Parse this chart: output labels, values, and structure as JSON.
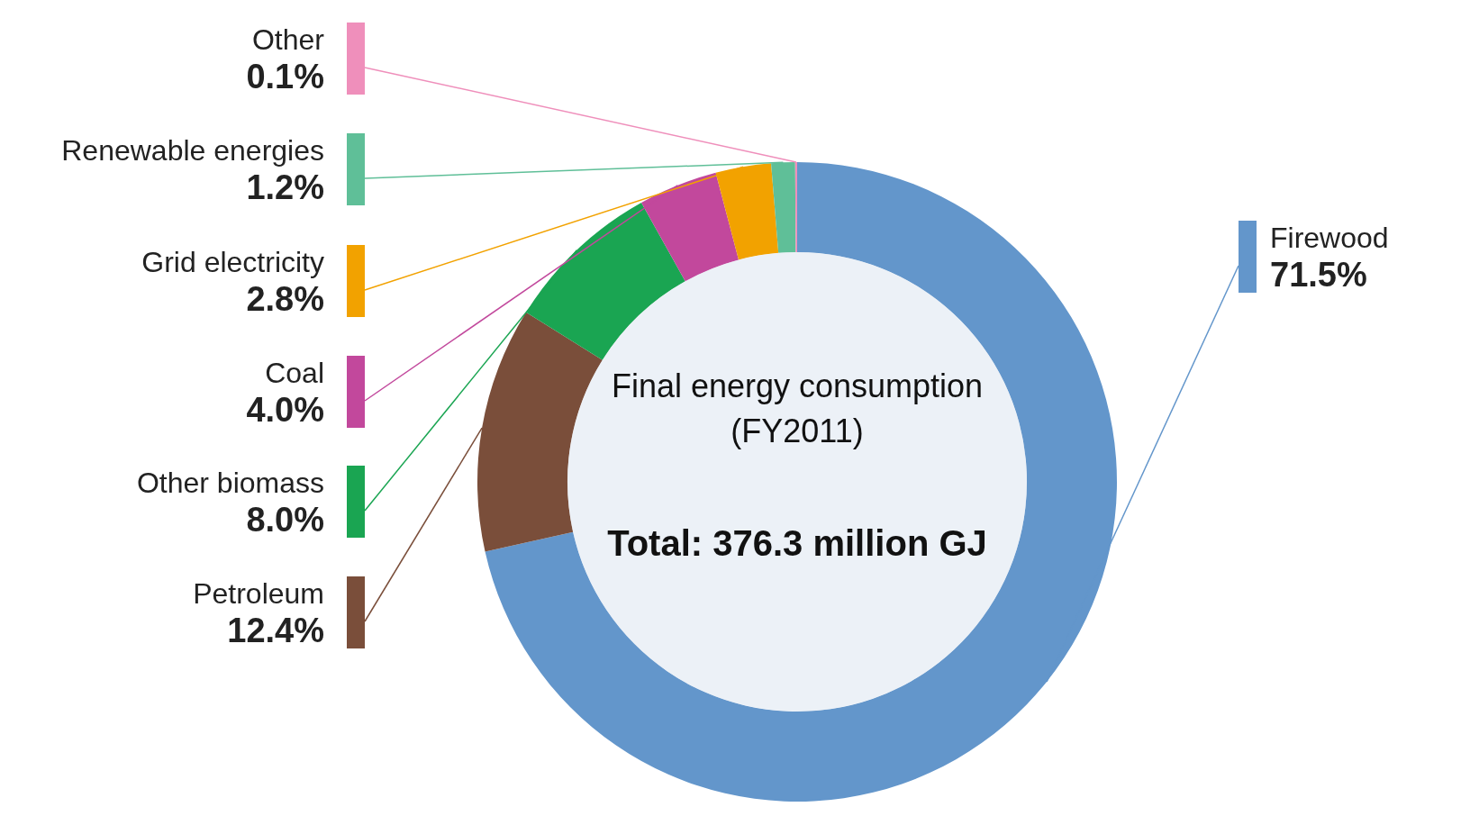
{
  "chart_data": {
    "type": "donut",
    "categories": [
      "Firewood",
      "Petroleum",
      "Other biomass",
      "Coal",
      "Grid electricity",
      "Renewable energies",
      "Other"
    ],
    "values": [
      71.5,
      12.4,
      8.0,
      4.0,
      2.8,
      1.2,
      0.1
    ],
    "value_labels": [
      "71.5%",
      "12.4%",
      "8.0%",
      "4.0%",
      "2.8%",
      "1.2%",
      "0.1%"
    ],
    "colors": [
      "#6396cb",
      "#7a4e3a",
      "#1aa552",
      "#c2489c",
      "#f2a200",
      "#5fbf98",
      "#ef8fbb"
    ],
    "annotations": [
      "Final energy consumption",
      "(FY2011)",
      "Total: 376.3 million GJ"
    ],
    "legend": false
  }
}
